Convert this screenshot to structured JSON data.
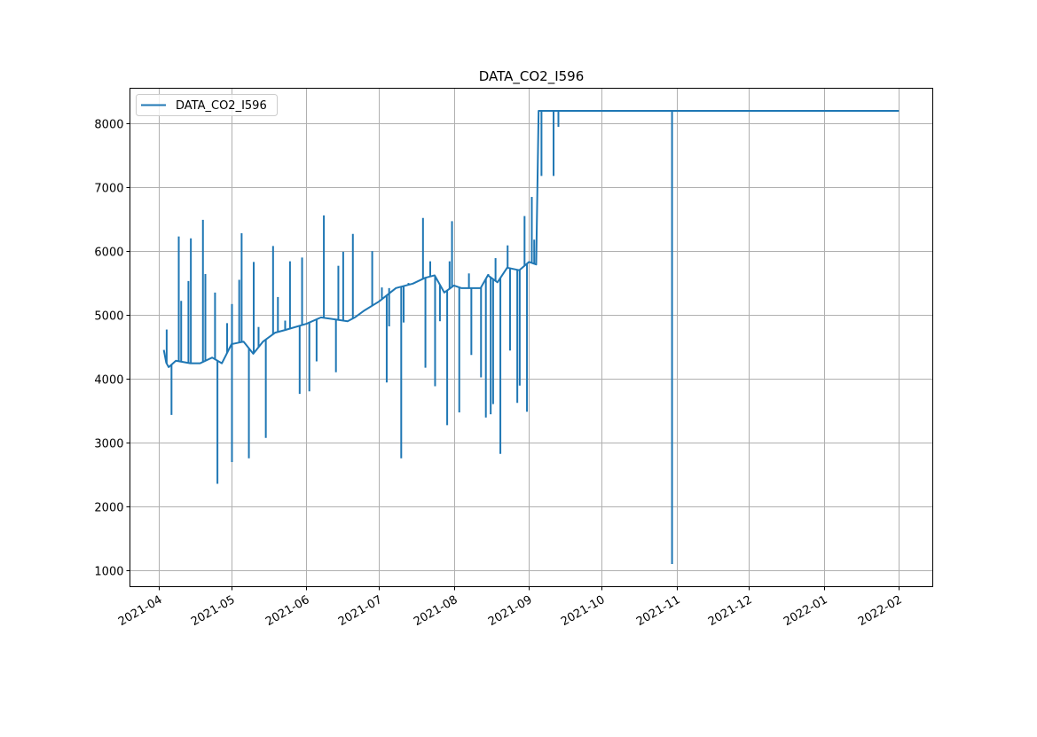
{
  "chart_data": {
    "type": "line",
    "title": "DATA_CO2_I596",
    "xlabel": "",
    "ylabel": "",
    "xlim": [
      "2021-03-20",
      "2022-02-15"
    ],
    "ylim": [
      736,
      8555
    ],
    "grid": true,
    "legend_position": "top-left",
    "x_tick_labels": [
      "2021-04",
      "2021-05",
      "2021-06",
      "2021-07",
      "2021-08",
      "2021-09",
      "2021-10",
      "2021-11",
      "2021-12",
      "2022-01",
      "2022-02"
    ],
    "y_ticks": [
      1000,
      2000,
      3000,
      4000,
      5000,
      6000,
      7000,
      8000
    ],
    "color": "#1f77b4",
    "series": [
      {
        "name": "DATA_CO2_I596",
        "baseline": [
          [
            "2021-04-03",
            4450
          ],
          [
            "2021-04-04",
            4250
          ],
          [
            "2021-04-05",
            4180
          ],
          [
            "2021-04-08",
            4280
          ],
          [
            "2021-04-14",
            4240
          ],
          [
            "2021-04-18",
            4240
          ],
          [
            "2021-04-23",
            4330
          ],
          [
            "2021-04-27",
            4240
          ],
          [
            "2021-05-01",
            4540
          ],
          [
            "2021-05-06",
            4580
          ],
          [
            "2021-05-10",
            4390
          ],
          [
            "2021-05-14",
            4580
          ],
          [
            "2021-05-19",
            4720
          ],
          [
            "2021-05-23",
            4760
          ],
          [
            "2021-06-01",
            4860
          ],
          [
            "2021-06-07",
            4960
          ],
          [
            "2021-06-18",
            4900
          ],
          [
            "2021-06-21",
            4960
          ],
          [
            "2021-06-25",
            5070
          ],
          [
            "2021-07-01",
            5210
          ],
          [
            "2021-07-08",
            5420
          ],
          [
            "2021-07-15",
            5490
          ],
          [
            "2021-07-20",
            5580
          ],
          [
            "2021-07-24",
            5620
          ],
          [
            "2021-07-28",
            5350
          ],
          [
            "2021-08-01",
            5460
          ],
          [
            "2021-08-04",
            5420
          ],
          [
            "2021-08-12",
            5420
          ],
          [
            "2021-08-15",
            5620
          ],
          [
            "2021-08-19",
            5510
          ],
          [
            "2021-08-23",
            5740
          ],
          [
            "2021-08-28",
            5700
          ],
          [
            "2021-09-01",
            5830
          ],
          [
            "2021-09-04",
            5790
          ],
          [
            "2021-09-05",
            8200
          ],
          [
            "2022-02-01",
            8200
          ]
        ],
        "spikes": [
          [
            "2021-04-04",
            4770
          ],
          [
            "2021-04-06",
            3430
          ],
          [
            "2021-04-09",
            6230
          ],
          [
            "2021-04-10",
            5220
          ],
          [
            "2021-04-13",
            5530
          ],
          [
            "2021-04-14",
            6200
          ],
          [
            "2021-04-19",
            6490
          ],
          [
            "2021-04-20",
            5640
          ],
          [
            "2021-04-24",
            5350
          ],
          [
            "2021-04-25",
            2350
          ],
          [
            "2021-04-29",
            4870
          ],
          [
            "2021-05-01",
            2690
          ],
          [
            "2021-05-01",
            5170
          ],
          [
            "2021-05-04",
            5550
          ],
          [
            "2021-05-05",
            6280
          ],
          [
            "2021-05-08",
            2750
          ],
          [
            "2021-05-10",
            5830
          ],
          [
            "2021-05-12",
            4810
          ],
          [
            "2021-05-15",
            3070
          ],
          [
            "2021-05-18",
            6080
          ],
          [
            "2021-05-20",
            5280
          ],
          [
            "2021-05-23",
            4910
          ],
          [
            "2021-05-25",
            5840
          ],
          [
            "2021-05-29",
            3760
          ],
          [
            "2021-05-30",
            5900
          ],
          [
            "2021-06-02",
            3800
          ],
          [
            "2021-06-05",
            4270
          ],
          [
            "2021-06-08",
            6560
          ],
          [
            "2021-06-13",
            4100
          ],
          [
            "2021-06-14",
            5770
          ],
          [
            "2021-06-16",
            5990
          ],
          [
            "2021-06-20",
            6270
          ],
          [
            "2021-06-28",
            6000
          ],
          [
            "2021-07-02",
            5430
          ],
          [
            "2021-07-04",
            3940
          ],
          [
            "2021-07-05",
            5420
          ],
          [
            "2021-07-05",
            4820
          ],
          [
            "2021-07-10",
            2750
          ],
          [
            "2021-07-11",
            4880
          ],
          [
            "2021-07-13",
            5500
          ],
          [
            "2021-07-19",
            6520
          ],
          [
            "2021-07-20",
            4170
          ],
          [
            "2021-07-22",
            5840
          ],
          [
            "2021-07-24",
            3880
          ],
          [
            "2021-07-26",
            4900
          ],
          [
            "2021-07-29",
            3270
          ],
          [
            "2021-07-30",
            5840
          ],
          [
            "2021-07-31",
            6470
          ],
          [
            "2021-08-03",
            3470
          ],
          [
            "2021-08-07",
            5650
          ],
          [
            "2021-08-08",
            4370
          ],
          [
            "2021-08-12",
            4020
          ],
          [
            "2021-08-14",
            3390
          ],
          [
            "2021-08-15",
            5640
          ],
          [
            "2021-08-16",
            3440
          ],
          [
            "2021-08-17",
            3600
          ],
          [
            "2021-08-18",
            5890
          ],
          [
            "2021-08-20",
            2820
          ],
          [
            "2021-08-23",
            6090
          ],
          [
            "2021-08-24",
            4440
          ],
          [
            "2021-08-27",
            3620
          ],
          [
            "2021-08-28",
            3890
          ],
          [
            "2021-08-30",
            6550
          ],
          [
            "2021-08-31",
            3480
          ],
          [
            "2021-09-02",
            6850
          ],
          [
            "2021-09-03",
            6180
          ],
          [
            "2021-09-06",
            7180
          ],
          [
            "2021-09-11",
            7180
          ],
          [
            "2021-09-13",
            7950
          ],
          [
            "2021-10-30",
            1090
          ]
        ]
      }
    ]
  }
}
